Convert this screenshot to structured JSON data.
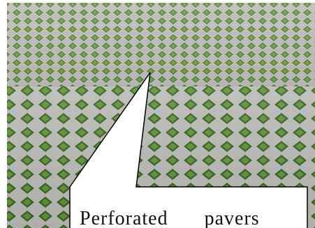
{
  "callout": {
    "text": "Perforated pavers"
  }
}
